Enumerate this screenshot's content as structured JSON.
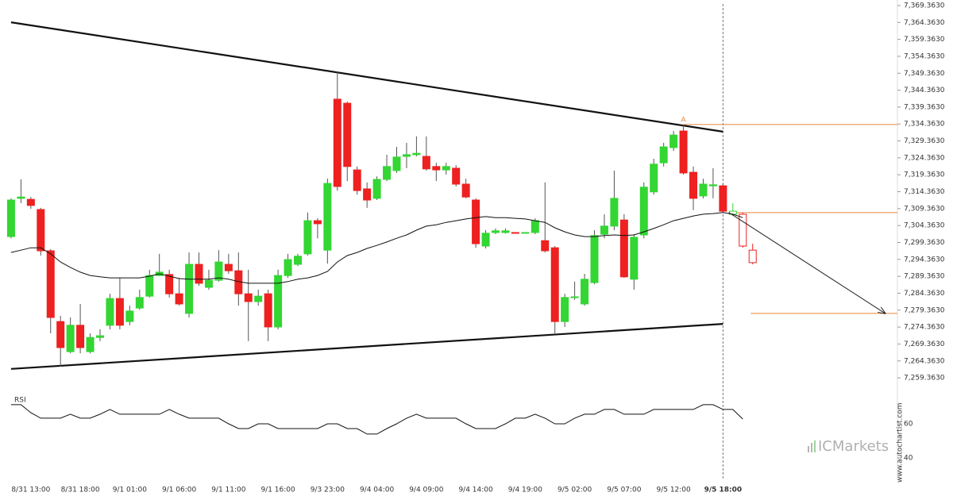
{
  "chart_data": {
    "type": "candlestick",
    "categories": [
      null,
      null,
      "8/31 13:00",
      null,
      null,
      null,
      null,
      "8/31 18:00",
      null,
      null,
      null,
      null,
      "9/1 01:00",
      null,
      null,
      null,
      null,
      "9/1 06:00",
      null,
      null,
      null,
      null,
      "9/1 11:00",
      null,
      null,
      null,
      null,
      "9/1 16:00",
      null,
      null,
      null,
      null,
      "9/3 23:00",
      null,
      null,
      null,
      null,
      "9/4 04:00",
      null,
      null,
      null,
      null,
      "9/4 09:00",
      null,
      null,
      null,
      null,
      "9/4 14:00",
      null,
      null,
      null,
      null,
      "9/4 19:00",
      null,
      null,
      null,
      null,
      "9/5 02:00",
      null,
      null,
      null,
      null,
      "9/5 07:00",
      null,
      null,
      null,
      null,
      "9/5 12:00",
      null,
      null,
      null,
      null,
      "9/5 18:00",
      null,
      null,
      null
    ],
    "current_index": 72,
    "xlim": [
      -1.12,
      89.64
    ],
    "up_color": "#33d633",
    "down_color": "#ee2020",
    "ohlc": [
      [
        7301.1,
        7312.4,
        7300.6,
        7311.9
      ],
      [
        7312.4,
        7318.0,
        7311.0,
        7312.8
      ],
      [
        7312.1,
        7312.8,
        7309.3,
        7310.3
      ],
      [
        7309.1,
        7309.6,
        7295.5,
        7296.9
      ],
      [
        7296.9,
        7297.4,
        7272.5,
        7277.2
      ],
      [
        7276.0,
        7277.7,
        7262.7,
        7268.3
      ],
      [
        7267.1,
        7277.2,
        7266.6,
        7274.9
      ],
      [
        7274.9,
        7281.2,
        7266.6,
        7268.3
      ],
      [
        7267.1,
        7272.5,
        7266.6,
        7271.3
      ],
      [
        7271.3,
        7273.7,
        7270.2,
        7271.8
      ],
      [
        7274.9,
        7284.2,
        7273.7,
        7282.8
      ],
      [
        7282.8,
        7288.9,
        7273.7,
        7274.9
      ],
      [
        7276.0,
        7280.7,
        7274.9,
        7279.1
      ],
      [
        7280.0,
        7285.4,
        7279.5,
        7283.1
      ],
      [
        7283.5,
        7291.3,
        7283.1,
        7289.6
      ],
      [
        7289.6,
        7296.0,
        7289.4,
        7290.6
      ],
      [
        7289.9,
        7291.3,
        7283.1,
        7284.2
      ],
      [
        7284.2,
        7288.9,
        7280.7,
        7281.2
      ],
      [
        7278.4,
        7296.4,
        7277.2,
        7292.9
      ],
      [
        7292.9,
        7296.4,
        7286.6,
        7287.3
      ],
      [
        7286.1,
        7291.3,
        7285.4,
        7288.2
      ],
      [
        7288.2,
        7297.1,
        7287.8,
        7293.6
      ],
      [
        7292.9,
        7296.0,
        7290.1,
        7291.0
      ],
      [
        7291.0,
        7296.4,
        7280.7,
        7284.2
      ],
      [
        7284.2,
        7291.3,
        7270.2,
        7281.9
      ],
      [
        7281.9,
        7285.4,
        7280.7,
        7283.5
      ],
      [
        7284.2,
        7285.4,
        7270.2,
        7274.4
      ],
      [
        7274.4,
        7291.3,
        7273.7,
        7289.6
      ],
      [
        7289.6,
        7296.0,
        7288.9,
        7294.3
      ],
      [
        7292.9,
        7296.0,
        7292.4,
        7295.3
      ],
      [
        7296.0,
        7308.2,
        7295.5,
        7305.8
      ],
      [
        7305.8,
        7306.5,
        7300.6,
        7304.9
      ],
      [
        7297.1,
        7318.2,
        7293.1,
        7316.8
      ],
      [
        7341.7,
        7349.9,
        7314.7,
        7315.9
      ],
      [
        7340.5,
        7341.0,
        7317.5,
        7321.8
      ],
      [
        7320.8,
        7321.8,
        7313.5,
        7314.7
      ],
      [
        7315.2,
        7317.1,
        7309.6,
        7311.9
      ],
      [
        7312.4,
        7318.9,
        7311.9,
        7318.0
      ],
      [
        7318.0,
        7325.3,
        7317.5,
        7321.8
      ],
      [
        7320.6,
        7327.6,
        7319.9,
        7324.6
      ],
      [
        7324.8,
        7328.8,
        7321.3,
        7325.3
      ],
      [
        7325.3,
        7330.7,
        7324.8,
        7325.7
      ],
      [
        7324.8,
        7330.7,
        7320.6,
        7321.1
      ],
      [
        7321.8,
        7322.9,
        7317.5,
        7320.8
      ],
      [
        7320.8,
        7322.9,
        7319.4,
        7321.8
      ],
      [
        7321.3,
        7322.2,
        7315.9,
        7316.6
      ],
      [
        7316.6,
        7318.2,
        7312.4,
        7312.8
      ],
      [
        7311.9,
        7312.4,
        7297.8,
        7299.0
      ],
      [
        7298.3,
        7303.0,
        7297.6,
        7302.1
      ],
      [
        7302.3,
        7303.5,
        7301.8,
        7302.8
      ],
      [
        7302.3,
        7303.5,
        7302.0,
        7302.8
      ],
      [
        7302.3,
        7302.3,
        7302.1,
        7302.1
      ],
      [
        7302.1,
        7302.3,
        7302.1,
        7302.3
      ],
      [
        7302.3,
        7306.5,
        7301.8,
        7305.8
      ],
      [
        7299.9,
        7317.1,
        7296.4,
        7296.9
      ],
      [
        7297.8,
        7298.3,
        7272.5,
        7276.0
      ],
      [
        7276.0,
        7284.2,
        7274.4,
        7283.1
      ],
      [
        7283.1,
        7287.8,
        7282.4,
        7283.3
      ],
      [
        7281.2,
        7290.1,
        7280.7,
        7288.5
      ],
      [
        7287.5,
        7303.0,
        7287.0,
        7301.4
      ],
      [
        7301.8,
        7307.7,
        7300.6,
        7304.2
      ],
      [
        7304.2,
        7320.6,
        7303.0,
        7312.4
      ],
      [
        7306.0,
        7307.7,
        7288.9,
        7289.2
      ],
      [
        7288.5,
        7301.8,
        7285.4,
        7300.9
      ],
      [
        7301.6,
        7317.1,
        7300.6,
        7315.7
      ],
      [
        7314.3,
        7324.1,
        7313.5,
        7322.5
      ],
      [
        7322.9,
        7328.8,
        7321.8,
        7327.6
      ],
      [
        7327.4,
        7332.3,
        7326.4,
        7331.1
      ],
      [
        7332.3,
        7334.2,
        7319.4,
        7319.9
      ],
      [
        7320.1,
        7321.8,
        7308.9,
        7312.4
      ],
      [
        7313.1,
        7318.2,
        7312.4,
        7316.6
      ],
      [
        7316.1,
        7321.3,
        7312.4,
        7316.4
      ],
      [
        7316.1,
        7316.6,
        7308.2,
        7308.6
      ],
      null,
      null,
      null
    ],
    "projected_ohlc": [
      null,
      null,
      null,
      null,
      null,
      null,
      null,
      null,
      null,
      null,
      null,
      null,
      null,
      null,
      null,
      null,
      null,
      null,
      null,
      null,
      null,
      null,
      null,
      null,
      null,
      null,
      null,
      null,
      null,
      null,
      null,
      null,
      null,
      null,
      null,
      null,
      null,
      null,
      null,
      null,
      null,
      null,
      null,
      null,
      null,
      null,
      null,
      null,
      null,
      null,
      null,
      null,
      null,
      null,
      null,
      null,
      null,
      null,
      null,
      null,
      null,
      null,
      null,
      null,
      null,
      null,
      null,
      null,
      null,
      null,
      null,
      null,
      null,
      [
        7307.7,
        7311.0,
        7307.2,
        7308.6
      ],
      [
        7307.7,
        7308.2,
        7297.8,
        7298.3
      ],
      [
        7297.1,
        7299.0,
        7292.9,
        7293.4
      ]
    ],
    "moving_average": [
      7296.4,
      7297.1,
      7297.8,
      7297.8,
      7296.0,
      7293.6,
      7292.0,
      7290.6,
      7289.6,
      7289.2,
      7288.9,
      7288.9,
      7288.9,
      7288.9,
      7289.4,
      7290.1,
      7289.4,
      7288.7,
      7288.5,
      7288.5,
      7288.5,
      7288.9,
      7288.5,
      7287.8,
      7287.3,
      7287.3,
      7287.3,
      7287.3,
      7287.8,
      7288.5,
      7288.9,
      7289.6,
      7290.8,
      7293.6,
      7295.5,
      7296.4,
      7297.6,
      7298.5,
      7299.5,
      7300.6,
      7301.6,
      7303.0,
      7304.2,
      7304.6,
      7305.3,
      7305.8,
      7306.3,
      7306.7,
      7307.0,
      7306.7,
      7306.7,
      7306.5,
      7306.3,
      7305.8,
      7305.3,
      7303.7,
      7302.5,
      7301.6,
      7301.1,
      7301.1,
      7301.4,
      7301.6,
      7301.4,
      7301.6,
      7302.5,
      7303.5,
      7304.6,
      7305.8,
      7306.5,
      7307.2,
      7307.7,
      7307.9,
      7308.2,
      7307.7,
      7306.7,
      null
    ],
    "ylim": [
      7256.1,
      7371.0
    ],
    "yticks": [
      {
        "value": 7259.363,
        "label": "7,259.3630"
      },
      {
        "value": 7264.363,
        "label": "7,264.3630"
      },
      {
        "value": 7269.363,
        "label": "7,269.3630"
      },
      {
        "value": 7274.363,
        "label": "7,274.3630"
      },
      {
        "value": 7279.363,
        "label": "7,279.3630"
      },
      {
        "value": 7284.363,
        "label": "7,284.3630"
      },
      {
        "value": 7289.363,
        "label": "7,289.3630"
      },
      {
        "value": 7294.363,
        "label": "7,294.3630"
      },
      {
        "value": 7299.363,
        "label": "7,299.3630"
      },
      {
        "value": 7304.363,
        "label": "7,304.3630"
      },
      {
        "value": 7309.363,
        "label": "7,309.3630"
      },
      {
        "value": 7314.363,
        "label": "7,314.3630"
      },
      {
        "value": 7319.363,
        "label": "7,319.3630"
      },
      {
        "value": 7324.363,
        "label": "7,324.3630"
      },
      {
        "value": 7329.363,
        "label": "7,329.3630"
      },
      {
        "value": 7334.363,
        "label": "7,334.3630"
      },
      {
        "value": 7339.363,
        "label": "7,339.3630"
      },
      {
        "value": 7344.363,
        "label": "7,344.3630"
      },
      {
        "value": 7349.363,
        "label": "7,349.3630"
      },
      {
        "value": 7354.363,
        "label": "7,354.3630"
      },
      {
        "value": 7359.363,
        "label": "7,359.3630"
      },
      {
        "value": 7364.363,
        "label": "7,364.3630"
      },
      {
        "value": 7369.363,
        "label": "7,369.3630"
      }
    ],
    "trendlines": [
      [
        [
          0,
          7364.4
        ],
        [
          72,
          7332.1
        ]
      ],
      [
        [
          0,
          7262.0
        ],
        [
          72,
          7275.3
        ]
      ]
    ],
    "level_color": "#e8883a",
    "levels": [
      {
        "value": 7334.2,
        "start": 68,
        "label": "A"
      },
      {
        "value": 7308.2,
        "start": 72.6
      },
      {
        "value": 7278.4,
        "start": 74.8
      }
    ],
    "arrow": {
      "from": [
        72.6,
        7308.2
      ],
      "to": [
        88.4,
        7278.4
      ]
    },
    "rsi": {
      "title": "RSI",
      "ylim": [
        29.3,
        75.8
      ],
      "yticks": [
        40,
        60
      ],
      "values": [
        71.2,
        71.2,
        66.5,
        63.3,
        63.3,
        63.3,
        65.6,
        63.3,
        63.3,
        65.6,
        68.4,
        65.6,
        65.6,
        65.6,
        65.6,
        65.6,
        68.4,
        65.6,
        63.3,
        63.3,
        63.3,
        63.3,
        60,
        57.2,
        57.2,
        60,
        60,
        57.2,
        57.2,
        57.2,
        57.2,
        57.2,
        60,
        60,
        57.2,
        57.2,
        54.0,
        54.0,
        57.2,
        60,
        63.3,
        65.6,
        63.3,
        63.3,
        63.3,
        63.3,
        60,
        57.2,
        57.2,
        57.2,
        60,
        63.3,
        63.3,
        65.6,
        63.3,
        60,
        60,
        63.3,
        65.6,
        65.6,
        68.4,
        68.4,
        65.6,
        65.6,
        65.6,
        68.4,
        68.4,
        68.4,
        68.4,
        68.4,
        71.2,
        71.2,
        68.4,
        68.4,
        62.8,
        null
      ]
    },
    "watermark": "ICMarkets",
    "source": "www.autochartist.com"
  }
}
